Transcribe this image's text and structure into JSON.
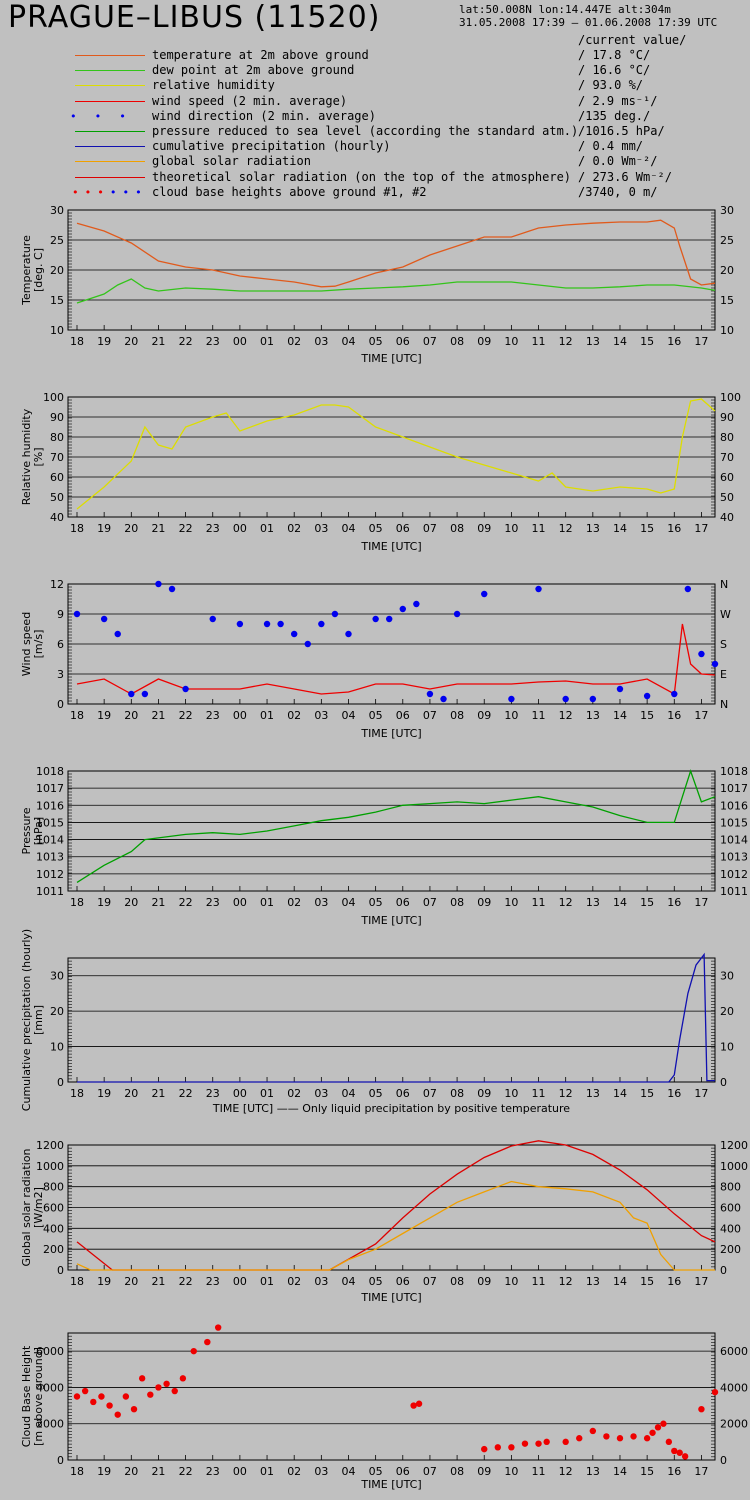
{
  "header": {
    "title": "PRAGUE–LIBUS (11520)",
    "coords": "lat:50.008N   lon:14.447E   alt:304m",
    "period": "31.05.2008 17:39 – 01.06.2008 17:39 UTC",
    "current_value_label": "/current value/"
  },
  "legend": [
    {
      "label": "temperature at 2m above ground",
      "value": "/ 17.8 °C/",
      "color": "#e05a1c",
      "style": "line"
    },
    {
      "label": "dew point at 2m above ground",
      "value": "/ 16.6 °C/",
      "color": "#33c41a",
      "style": "line"
    },
    {
      "label": "relative humidity",
      "value": "/  93.0 %/",
      "color": "#dddd00",
      "style": "line"
    },
    {
      "label": "wind speed (2 min. average)",
      "value": "/  2.9 ms⁻¹/",
      "color": "#ee0000",
      "style": "line"
    },
    {
      "label": "wind direction (2 min. average)",
      "value": "/135 deg./",
      "color": "#0000ee",
      "style": "dots"
    },
    {
      "label": "pressure reduced to sea level (according the standard atm.)",
      "value": "/1016.5 hPa/",
      "color": "#00a000",
      "style": "line"
    },
    {
      "label": "cumulative precipitation (hourly)",
      "value": "/  0.4 mm/",
      "color": "#1010b0",
      "style": "line"
    },
    {
      "label": "global solar radiation",
      "value": "/   0.0 Wm⁻²/",
      "color": "#f0a000",
      "style": "line"
    },
    {
      "label": "theoretical solar radiation (on the top of the atmosphere)",
      "value": "/ 273.6 Wm⁻²/",
      "color": "#dd0000",
      "style": "line"
    },
    {
      "label": "cloud base heights above ground #1, #2",
      "value": "/3740,    0 m/",
      "color": "#ee0000",
      "style": "dots2"
    }
  ],
  "chart_data": [
    {
      "type": "line",
      "id": "temp",
      "ylabel": "Temperature [deg. C]",
      "xlabel": "TIME [UTC]",
      "ylim": [
        10,
        30
      ],
      "yticks": [
        10,
        15,
        20,
        25,
        30
      ],
      "grid": true,
      "x_categories": [
        "18",
        "19",
        "20",
        "21",
        "22",
        "23",
        "00",
        "01",
        "02",
        "03",
        "04",
        "05",
        "06",
        "07",
        "08",
        "09",
        "10",
        "11",
        "12",
        "13",
        "14",
        "15",
        "16",
        "17"
      ],
      "series": [
        {
          "name": "temperature at 2m above ground",
          "color": "#e05a1c",
          "x": [
            0,
            1,
            2,
            3,
            4,
            5,
            6,
            7,
            8,
            9,
            9.5,
            10,
            11,
            12,
            13,
            14,
            15,
            16,
            17,
            18,
            19,
            20,
            21,
            21.5,
            22,
            22.2,
            22.6,
            23,
            23.5
          ],
          "y": [
            27.8,
            26.5,
            24.5,
            21.5,
            20.5,
            20.0,
            19.0,
            18.5,
            18.0,
            17.2,
            17.3,
            18.0,
            19.5,
            20.5,
            22.5,
            24.0,
            25.5,
            25.5,
            27.0,
            27.5,
            27.8,
            28.0,
            28.0,
            28.3,
            27.0,
            24.0,
            18.5,
            17.5,
            17.8
          ]
        },
        {
          "name": "dew point at 2m above ground",
          "color": "#33c41a",
          "x": [
            0,
            1,
            1.5,
            2,
            2.5,
            3,
            4,
            5,
            6,
            7,
            8,
            9,
            10,
            11,
            12,
            13,
            14,
            15,
            16,
            17,
            18,
            19,
            20,
            21,
            22,
            23,
            23.5
          ],
          "y": [
            14.5,
            16.0,
            17.5,
            18.5,
            17.0,
            16.5,
            17.0,
            16.8,
            16.5,
            16.5,
            16.5,
            16.5,
            16.8,
            17.0,
            17.2,
            17.5,
            18.0,
            18.0,
            18.0,
            17.5,
            17.0,
            17.0,
            17.2,
            17.5,
            17.5,
            17.0,
            16.6
          ]
        }
      ]
    },
    {
      "type": "line",
      "id": "rh",
      "ylabel": "Relative humidity [%]",
      "xlabel": "TIME [UTC]",
      "ylim": [
        40,
        100
      ],
      "yticks": [
        40,
        50,
        60,
        70,
        80,
        90,
        100
      ],
      "grid": true,
      "x_categories": [
        "18",
        "19",
        "20",
        "21",
        "22",
        "23",
        "00",
        "01",
        "02",
        "03",
        "04",
        "05",
        "06",
        "07",
        "08",
        "09",
        "10",
        "11",
        "12",
        "13",
        "14",
        "15",
        "16",
        "17"
      ],
      "series": [
        {
          "name": "relative humidity",
          "color": "#dddd00",
          "x": [
            0,
            1,
            2,
            2.5,
            3,
            3.5,
            4,
            5,
            5.5,
            6,
            7,
            8,
            9,
            9.5,
            10,
            11,
            12,
            13,
            14,
            15,
            16,
            17,
            17.5,
            18,
            19,
            20,
            21,
            21.5,
            22,
            22.3,
            22.6,
            23,
            23.5
          ],
          "y": [
            44,
            55,
            68,
            85,
            76,
            74,
            85,
            90,
            92,
            83,
            88,
            91,
            96,
            96,
            95,
            85,
            80,
            75,
            70,
            66,
            62,
            58,
            62,
            55,
            53,
            55,
            54,
            52,
            54,
            80,
            98,
            99,
            93
          ]
        }
      ]
    },
    {
      "type": "scatter",
      "id": "wind",
      "ylabel": "Wind speed [m/s]",
      "xlabel": "TIME [UTC]",
      "ylim": [
        0,
        12
      ],
      "yticks": [
        0,
        3,
        6,
        9,
        12
      ],
      "y2ticks": [
        "N",
        "E",
        "S",
        "W",
        "N"
      ],
      "grid": true,
      "x_categories": [
        "18",
        "19",
        "20",
        "21",
        "22",
        "23",
        "00",
        "01",
        "02",
        "03",
        "04",
        "05",
        "06",
        "07",
        "08",
        "09",
        "10",
        "11",
        "12",
        "13",
        "14",
        "15",
        "16",
        "17"
      ],
      "series": [
        {
          "name": "wind speed (2 min. average)",
          "color": "#ee0000",
          "x": [
            0,
            1,
            2,
            3,
            4,
            5,
            6,
            7,
            8,
            9,
            10,
            11,
            12,
            13,
            14,
            15,
            16,
            17,
            18,
            19,
            20,
            21,
            22,
            22.3,
            22.6,
            23,
            23.5
          ],
          "y": [
            2.0,
            2.5,
            1.0,
            2.5,
            1.5,
            1.5,
            1.5,
            2.0,
            1.5,
            1.0,
            1.2,
            2.0,
            2.0,
            1.5,
            2.0,
            2.0,
            2.0,
            2.2,
            2.3,
            2.0,
            2.0,
            2.5,
            1.0,
            8.0,
            4.0,
            3.0,
            2.9
          ]
        },
        {
          "name": "wind direction (2 min. average)",
          "color": "#0000ee",
          "x": [
            0,
            1,
            1.5,
            2,
            2.5,
            3,
            3.5,
            4,
            5,
            6,
            7,
            7.5,
            8,
            8.5,
            9,
            9.5,
            10,
            11,
            11.5,
            12,
            12.5,
            13,
            13.5,
            14,
            15,
            16,
            17,
            18,
            19,
            20,
            21,
            22,
            22.5,
            23,
            23.5
          ],
          "y": [
            9.0,
            8.5,
            7.0,
            1.0,
            1.0,
            12.0,
            11.5,
            1.5,
            8.5,
            8.0,
            8.0,
            8.0,
            7.0,
            6.0,
            8.0,
            9.0,
            7.0,
            8.5,
            8.5,
            9.5,
            10.0,
            1.0,
            0.5,
            9.0,
            11.0,
            0.5,
            11.5,
            0.5,
            0.5,
            1.5,
            0.8,
            1.0,
            11.5,
            5.0,
            4.0
          ]
        }
      ]
    },
    {
      "type": "line",
      "id": "pressure",
      "ylabel": "Pressure [hPa]",
      "xlabel": "TIME [UTC]",
      "ylim": [
        1011,
        1018
      ],
      "yticks": [
        1011,
        1012,
        1013,
        1014,
        1015,
        1016,
        1017,
        1018
      ],
      "grid": true,
      "x_categories": [
        "18",
        "19",
        "20",
        "21",
        "22",
        "23",
        "00",
        "01",
        "02",
        "03",
        "04",
        "05",
        "06",
        "07",
        "08",
        "09",
        "10",
        "11",
        "12",
        "13",
        "14",
        "15",
        "16",
        "17"
      ],
      "series": [
        {
          "name": "pressure reduced to sea level",
          "color": "#00a000",
          "x": [
            0,
            1,
            2,
            2.5,
            3,
            4,
            5,
            6,
            7,
            8,
            9,
            10,
            11,
            12,
            13,
            14,
            15,
            16,
            17,
            18,
            19,
            20,
            21,
            22,
            22.3,
            22.6,
            23,
            23.5
          ],
          "y": [
            1011.5,
            1012.5,
            1013.3,
            1014.0,
            1014.1,
            1014.3,
            1014.4,
            1014.3,
            1014.5,
            1014.8,
            1015.1,
            1015.3,
            1015.6,
            1016.0,
            1016.1,
            1016.2,
            1016.1,
            1016.3,
            1016.5,
            1016.2,
            1015.9,
            1015.4,
            1015.0,
            1015.0,
            1016.5,
            1018.0,
            1016.2,
            1016.5
          ]
        }
      ]
    },
    {
      "type": "line",
      "id": "precip",
      "ylabel": "Cumulative precipitation (hourly) [mm]",
      "xlabel": "TIME [UTC] —— Only liquid precipitation by positive temperature",
      "ylim": [
        0,
        35
      ],
      "yticks": [
        0,
        10,
        20,
        30
      ],
      "grid": true,
      "x_categories": [
        "18",
        "19",
        "20",
        "21",
        "22",
        "23",
        "00",
        "01",
        "02",
        "03",
        "04",
        "05",
        "06",
        "07",
        "08",
        "09",
        "10",
        "11",
        "12",
        "13",
        "14",
        "15",
        "16",
        "17"
      ],
      "series": [
        {
          "name": "cumulative precipitation (hourly)",
          "color": "#1010b0",
          "x": [
            0,
            21.8,
            22.0,
            22.2,
            22.5,
            22.8,
            23.0,
            23.1,
            23.2,
            23.5
          ],
          "y": [
            0,
            0,
            2,
            12,
            25,
            33,
            35,
            36,
            0.4,
            0.4
          ]
        }
      ]
    },
    {
      "type": "line",
      "id": "solar",
      "ylabel": "Global solar radiation [W/m2]",
      "xlabel": "TIME [UTC]",
      "ylim": [
        0,
        1200
      ],
      "yticks": [
        0,
        200,
        400,
        600,
        800,
        1000,
        1200
      ],
      "grid": true,
      "x_categories": [
        "18",
        "19",
        "20",
        "21",
        "22",
        "23",
        "00",
        "01",
        "02",
        "03",
        "04",
        "05",
        "06",
        "07",
        "08",
        "09",
        "10",
        "11",
        "12",
        "13",
        "14",
        "15",
        "16",
        "17"
      ],
      "series": [
        {
          "name": "theoretical solar radiation",
          "color": "#dd0000",
          "x": [
            0,
            1.3,
            9.3,
            11,
            12,
            13,
            14,
            15,
            16,
            17,
            18,
            19,
            20,
            21,
            22,
            23,
            23.5
          ],
          "y": [
            270,
            0,
            0,
            250,
            500,
            730,
            920,
            1080,
            1190,
            1240,
            1200,
            1110,
            960,
            770,
            540,
            330,
            270
          ]
        },
        {
          "name": "global solar radiation",
          "color": "#f0a000",
          "x": [
            0,
            0.5,
            1.3,
            9.3,
            10,
            11,
            12,
            13,
            14,
            15,
            15.5,
            16,
            17,
            18,
            19,
            20,
            20.5,
            21,
            21.5,
            22,
            23,
            23.5
          ],
          "y": [
            60,
            0,
            0,
            0,
            100,
            200,
            350,
            500,
            650,
            750,
            800,
            850,
            800,
            780,
            750,
            650,
            500,
            450,
            150,
            0,
            0,
            0
          ]
        }
      ]
    },
    {
      "type": "scatter",
      "id": "cloud",
      "ylabel": "Cloud Base Height [m above ground]",
      "xlabel": "TIME [UTC]",
      "ylim": [
        0,
        7000
      ],
      "yticks": [
        0,
        2000,
        4000,
        6000
      ],
      "grid": true,
      "x_categories": [
        "18",
        "19",
        "20",
        "21",
        "22",
        "23",
        "00",
        "01",
        "02",
        "03",
        "04",
        "05",
        "06",
        "07",
        "08",
        "09",
        "10",
        "11",
        "12",
        "13",
        "14",
        "15",
        "16",
        "17"
      ],
      "series": [
        {
          "name": "cloud base heights above ground #1, #2",
          "color": "#ee0000",
          "x": [
            0,
            0.3,
            0.6,
            0.9,
            1.2,
            1.5,
            1.8,
            2.1,
            2.4,
            2.7,
            3.0,
            3.3,
            3.6,
            3.9,
            4.3,
            4.8,
            5.2,
            12.4,
            12.6,
            15.0,
            15.5,
            16.0,
            16.5,
            17.0,
            17.3,
            18.0,
            18.5,
            19.0,
            19.5,
            20.0,
            20.5,
            21.0,
            21.2,
            21.4,
            21.6,
            21.8,
            22.0,
            22.2,
            22.4,
            23.0,
            23.5
          ],
          "y": [
            3500,
            3800,
            3200,
            3500,
            3000,
            2500,
            3500,
            2800,
            4500,
            3600,
            4000,
            4200,
            3800,
            4500,
            6000,
            6500,
            7300,
            3000,
            3100,
            600,
            700,
            700,
            900,
            900,
            1000,
            1000,
            1200,
            1600,
            1300,
            1200,
            1300,
            1200,
            1500,
            1800,
            2000,
            1000,
            500,
            400,
            200,
            2800,
            3740
          ]
        }
      ]
    }
  ]
}
